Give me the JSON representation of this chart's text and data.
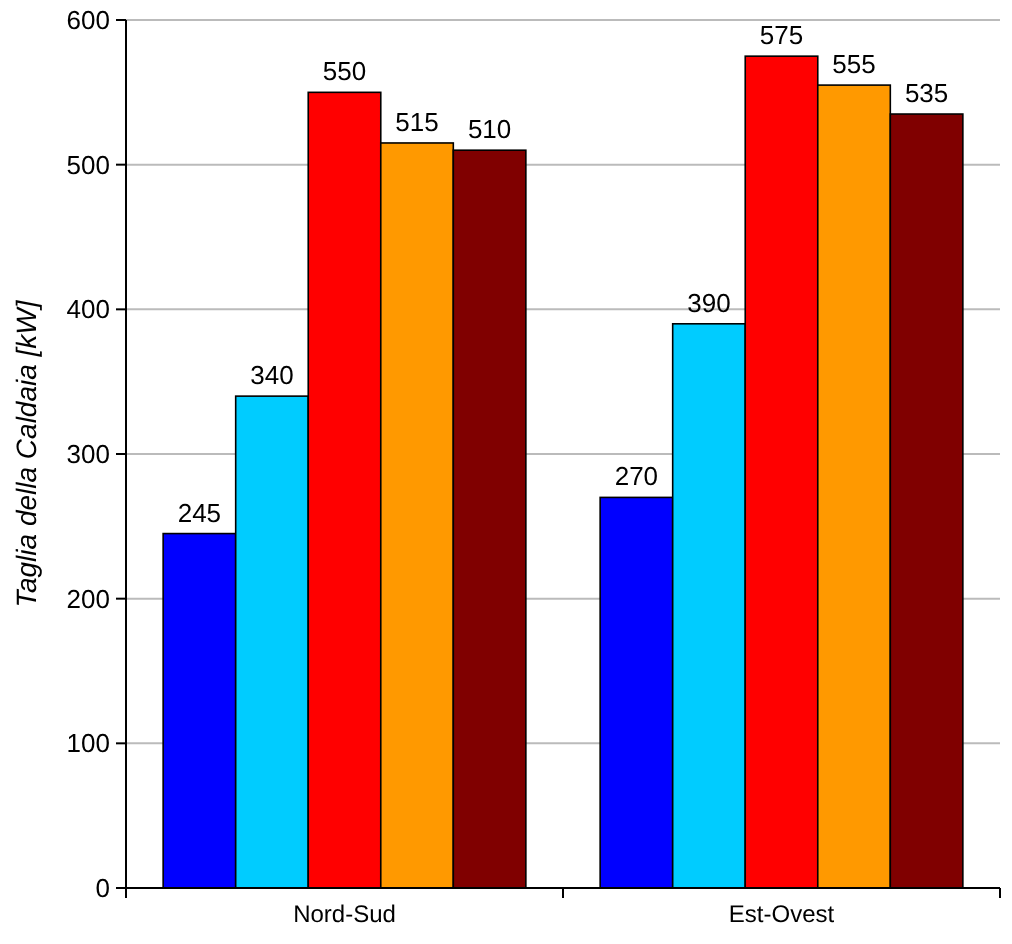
{
  "chart_data": {
    "type": "bar",
    "ylabel": "Taglia della Caldaia [kW]",
    "categories": [
      "Nord-Sud",
      "Est-Ovest"
    ],
    "series": [
      {
        "color": "#0000ff",
        "values": [
          245,
          270
        ]
      },
      {
        "color": "#00ccff",
        "values": [
          340,
          390
        ]
      },
      {
        "color": "#ff0000",
        "values": [
          550,
          575
        ]
      },
      {
        "color": "#ff9900",
        "values": [
          515,
          555
        ]
      },
      {
        "color": "#800000",
        "values": [
          510,
          535
        ]
      }
    ],
    "ylim": [
      0,
      600
    ],
    "yticks": [
      0,
      100,
      200,
      300,
      400,
      500,
      600
    ],
    "grid": "y",
    "data_labels": true
  }
}
